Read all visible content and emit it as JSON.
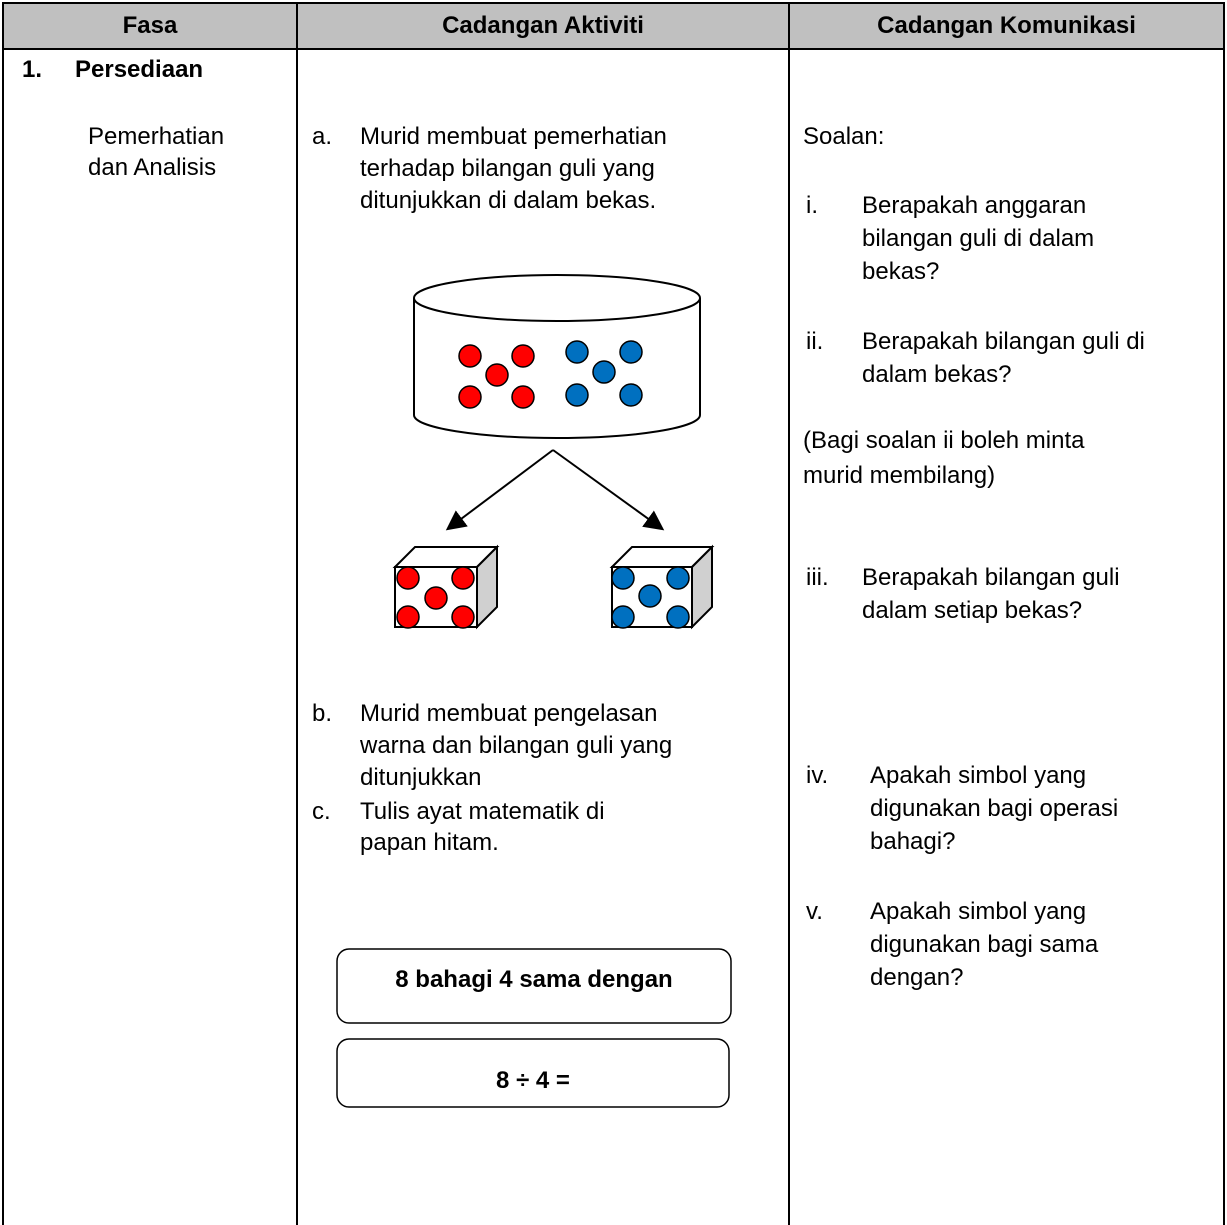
{
  "table": {
    "headers": [
      "Fasa",
      "Cadangan Aktiviti",
      "Cadangan Komunikasi"
    ],
    "phase": {
      "number": "1.",
      "title": "Persediaan",
      "subtitle": [
        "Pemerhatian",
        "dan Analisis"
      ]
    },
    "activities": [
      {
        "marker": "a.",
        "lines": [
          "Murid membuat pemerhatian",
          "terhadap bilangan guli yang",
          "ditunjukkan di dalam bekas."
        ]
      },
      {
        "marker": "b.",
        "lines": [
          "Murid membuat pengelasan",
          "warna dan bilangan guli yang",
          "ditunjukkan"
        ]
      },
      {
        "marker": "c.",
        "lines": [
          "Tulis ayat matematik di",
          "papan hitam."
        ]
      }
    ],
    "boxes": [
      "8 bahagi 4 sama dengan",
      "8 ÷ 4 ="
    ],
    "communication": {
      "heading": "Soalan:",
      "questions": [
        {
          "marker": "i.",
          "lines": [
            "Berapakah anggaran",
            "bilangan guli di dalam",
            "bekas?"
          ]
        },
        {
          "marker": "ii.",
          "lines": [
            "Berapakah bilangan guli di",
            "dalam bekas?"
          ]
        },
        {
          "marker": "iii.",
          "lines": [
            "Berapakah bilangan guli",
            "dalam setiap bekas?"
          ]
        },
        {
          "marker": "iv.",
          "lines": [
            "Apakah simbol yang",
            "digunakan bagi operasi",
            "bahagi?"
          ]
        },
        {
          "marker": "v.",
          "lines": [
            "Apakah simbol yang",
            "digunakan bagi sama",
            "dengan?"
          ]
        }
      ],
      "note": [
        "(Bagi soalan ii boleh minta",
        "murid membilang)"
      ]
    }
  }
}
